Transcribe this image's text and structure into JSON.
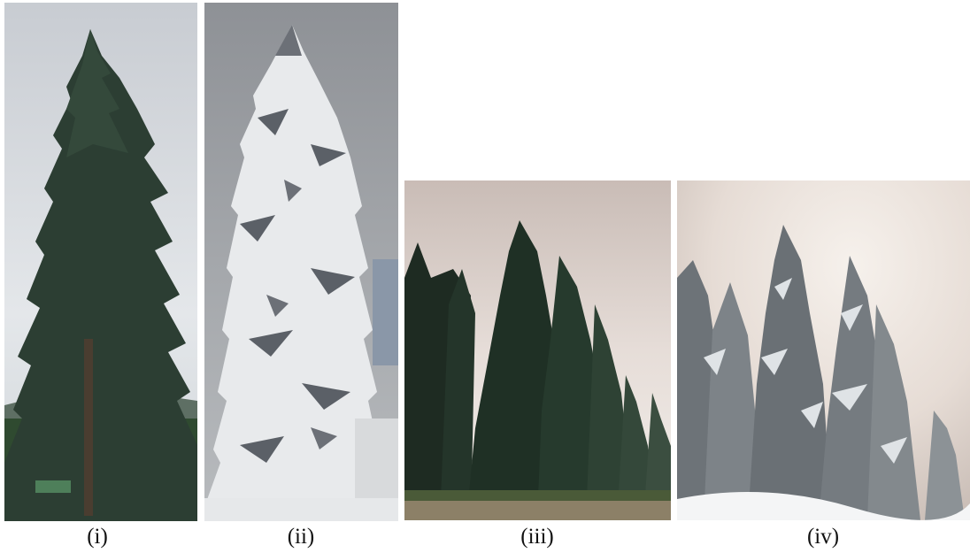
{
  "figure": {
    "panels": [
      {
        "label": "(i)",
        "subject": "single-spruce-summer"
      },
      {
        "label": "(ii)",
        "subject": "single-spruce-snow"
      },
      {
        "label": "(iii)",
        "subject": "spruce-stand-summer"
      },
      {
        "label": "(iv)",
        "subject": "spruce-stand-snow"
      }
    ]
  }
}
